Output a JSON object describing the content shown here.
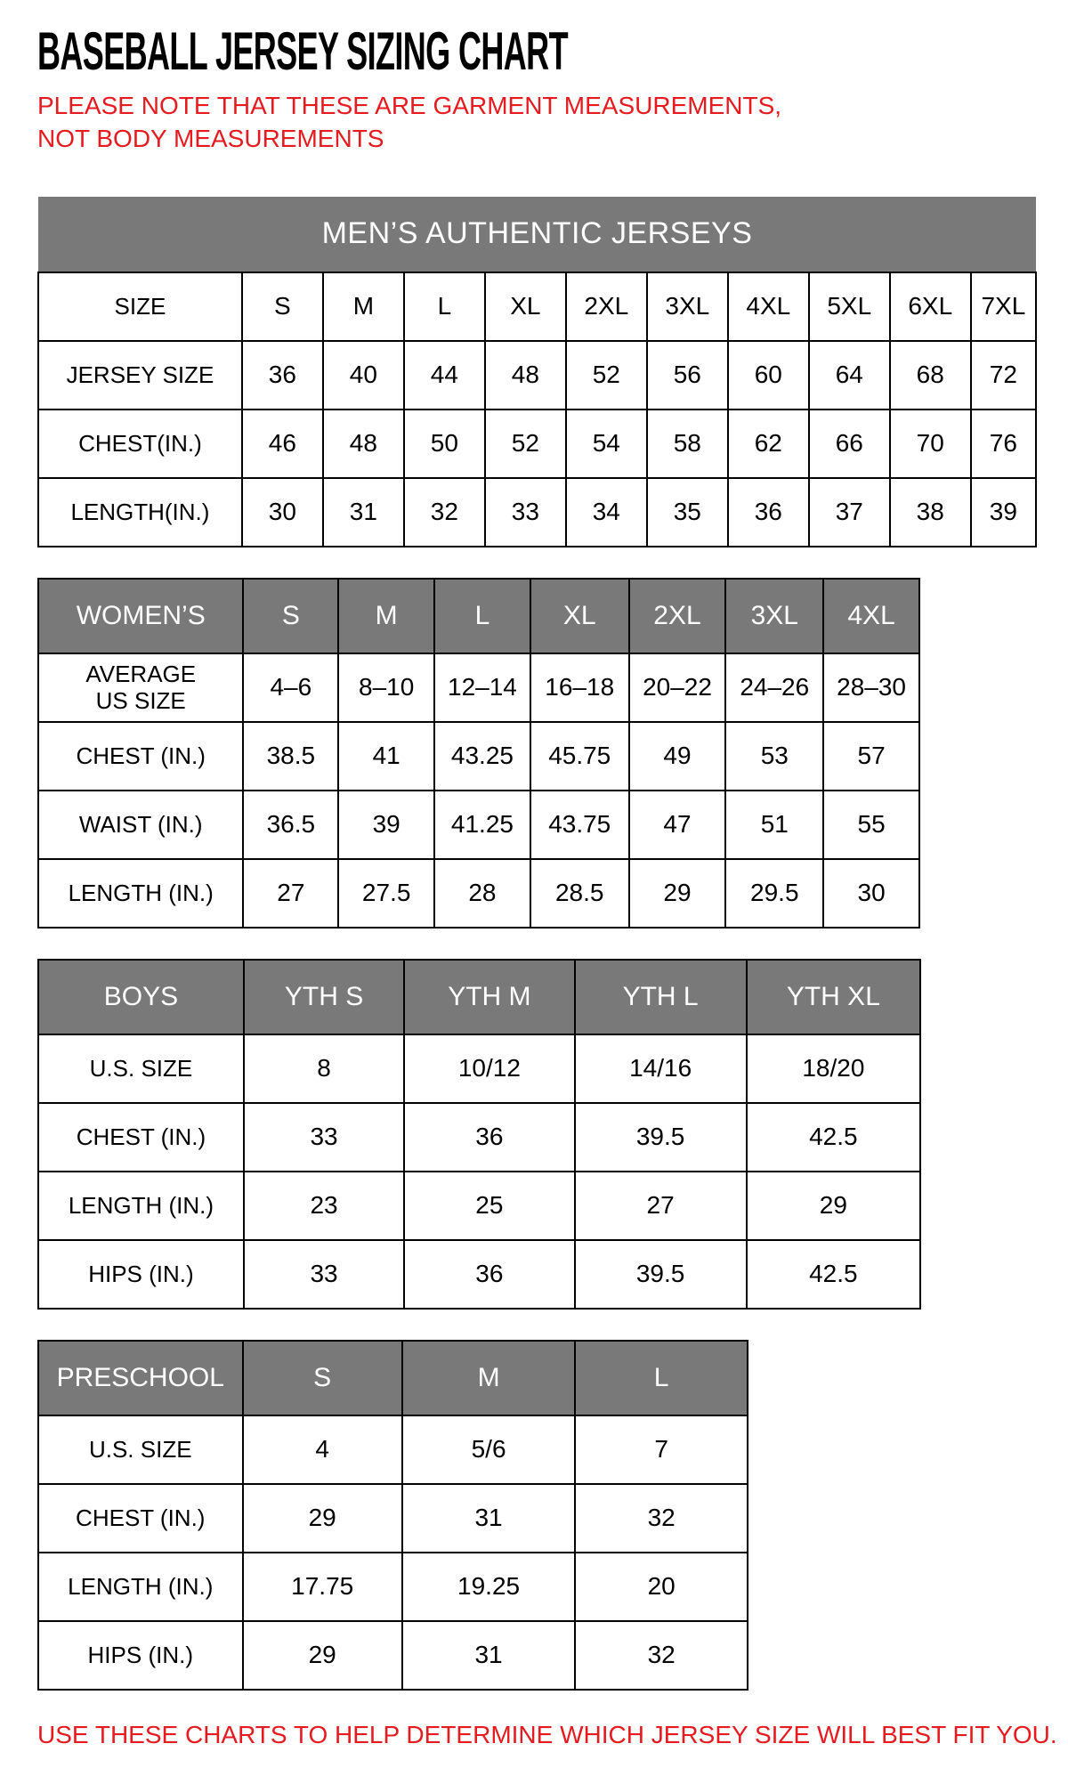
{
  "page": {
    "title": "BASEBALL JERSEY SIZING CHART",
    "note": "PLEASE NOTE THAT THESE ARE GARMENT MEASUREMENTS, NOT BODY MEASUREMENTS",
    "footer": "USE THESE CHARTS TO HELP DETERMINE WHICH JERSEY SIZE WILL BEST FIT YOU.",
    "colors": {
      "accent_red": "#e51b20",
      "header_gray": "#797979",
      "header_text": "#ffffff",
      "border": "#000000"
    }
  },
  "tables": [
    {
      "id": "mens",
      "banner": "MEN’S AUTHENTIC JERSEYS",
      "rows": [
        {
          "label": "SIZE",
          "values": [
            "S",
            "M",
            "L",
            "XL",
            "2XL",
            "3XL",
            "4XL",
            "5XL",
            "6XL",
            "7XL"
          ]
        },
        {
          "label": "JERSEY SIZE",
          "values": [
            "36",
            "40",
            "44",
            "48",
            "52",
            "56",
            "60",
            "64",
            "68",
            "72"
          ]
        },
        {
          "label": "CHEST(IN.)",
          "values": [
            "46",
            "48",
            "50",
            "52",
            "54",
            "58",
            "62",
            "66",
            "70",
            "76"
          ]
        },
        {
          "label": "LENGTH(IN.)",
          "values": [
            "30",
            "31",
            "32",
            "33",
            "34",
            "35",
            "36",
            "37",
            "38",
            "39"
          ]
        }
      ]
    },
    {
      "id": "womens",
      "header": [
        "WOMEN’S",
        "S",
        "M",
        "L",
        "XL",
        "2XL",
        "3XL",
        "4XL"
      ],
      "rows": [
        {
          "label": "AVERAGE\nUS SIZE",
          "values": [
            "4–6",
            "8–10",
            "12–14",
            "16–18",
            "20–22",
            "24–26",
            "28–30"
          ]
        },
        {
          "label": "CHEST (IN.)",
          "values": [
            "38.5",
            "41",
            "43.25",
            "45.75",
            "49",
            "53",
            "57"
          ]
        },
        {
          "label": "WAIST (IN.)",
          "values": [
            "36.5",
            "39",
            "41.25",
            "43.75",
            "47",
            "51",
            "55"
          ]
        },
        {
          "label": "LENGTH (IN.)",
          "values": [
            "27",
            "27.5",
            "28",
            "28.5",
            "29",
            "29.5",
            "30"
          ]
        }
      ]
    },
    {
      "id": "boys",
      "header": [
        "BOYS",
        "YTH S",
        "YTH M",
        "YTH L",
        "YTH XL"
      ],
      "rows": [
        {
          "label": "U.S. SIZE",
          "values": [
            "8",
            "10/12",
            "14/16",
            "18/20"
          ]
        },
        {
          "label": "CHEST (IN.)",
          "values": [
            "33",
            "36",
            "39.5",
            "42.5"
          ]
        },
        {
          "label": "LENGTH (IN.)",
          "values": [
            "23",
            "25",
            "27",
            "29"
          ]
        },
        {
          "label": "HIPS (IN.)",
          "values": [
            "33",
            "36",
            "39.5",
            "42.5"
          ]
        }
      ]
    },
    {
      "id": "preschool",
      "header": [
        "PRESCHOOL",
        "S",
        "M",
        "L"
      ],
      "rows": [
        {
          "label": "U.S. SIZE",
          "values": [
            "4",
            "5/6",
            "7"
          ]
        },
        {
          "label": "CHEST (IN.)",
          "values": [
            "29",
            "31",
            "32"
          ]
        },
        {
          "label": "LENGTH (IN.)",
          "values": [
            "17.75",
            "19.25",
            "20"
          ]
        },
        {
          "label": "HIPS (IN.)",
          "values": [
            "29",
            "31",
            "32"
          ]
        }
      ]
    }
  ]
}
